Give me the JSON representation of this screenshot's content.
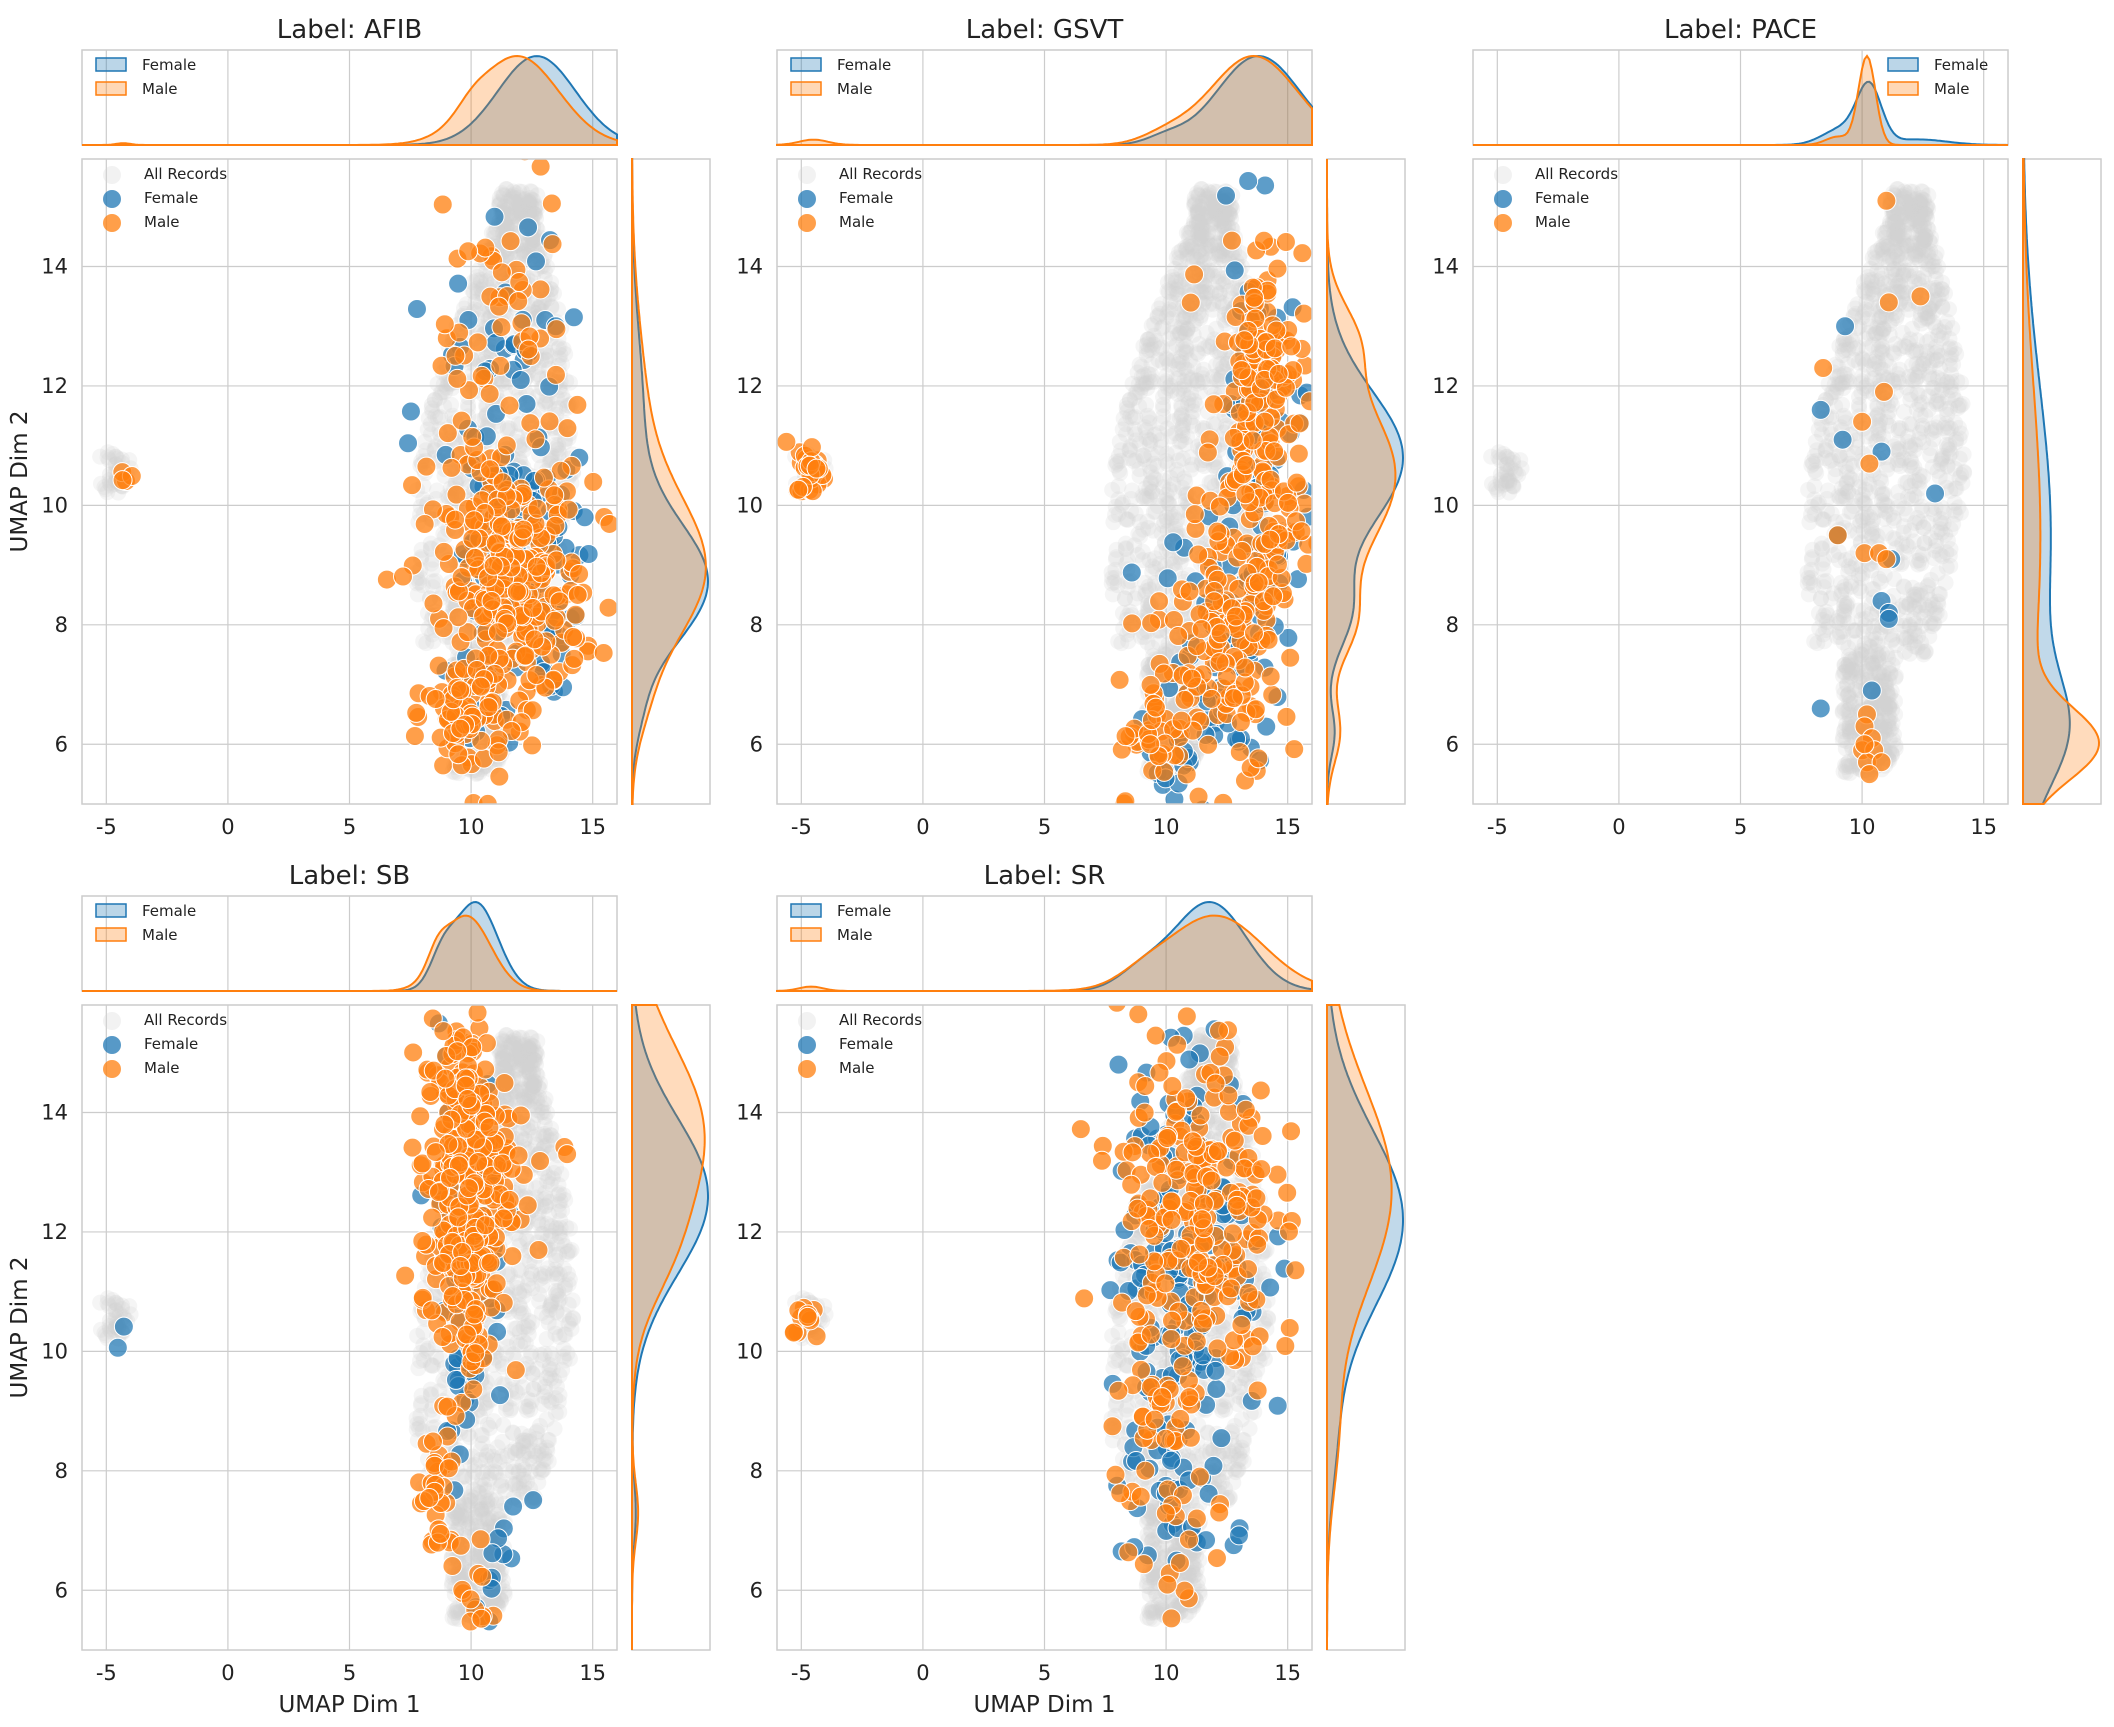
{
  "figure": {
    "x_axis_label": "UMAP Dim 1",
    "y_axis_label": "UMAP Dim 2",
    "x_ticks": [
      -5,
      0,
      5,
      10,
      15
    ],
    "y_ticks": [
      6,
      8,
      10,
      12,
      14
    ],
    "xlim": [
      -6,
      16
    ],
    "ylim": [
      5,
      15.8
    ],
    "colors": {
      "female": "#1f77b4",
      "male": "#ff7f0e",
      "background": "#d3d3d3",
      "grid": "#cccccc"
    },
    "scatter_legend": [
      "All Records",
      "Female",
      "Male"
    ],
    "kde_legend": [
      "Female",
      "Male"
    ]
  },
  "chart_data": [
    {
      "type": "scatter",
      "title": "Label: AFIB",
      "xlabel": "",
      "ylabel": "UMAP Dim 2",
      "kde_legend_position": "top-left",
      "female_cluster": [
        [
          12.0,
          8.8,
          1.2,
          1.0,
          90
        ],
        [
          11.0,
          10.8,
          1.6,
          1.8,
          40
        ],
        [
          10.2,
          6.5,
          0.6,
          0.5,
          20
        ],
        [
          12.5,
          12.5,
          1.8,
          1.5,
          20
        ]
      ],
      "male_cluster": [
        [
          11.8,
          8.6,
          1.4,
          1.0,
          260
        ],
        [
          10.8,
          11.0,
          1.8,
          1.8,
          60
        ],
        [
          9.8,
          6.5,
          0.8,
          0.6,
          60
        ],
        [
          11.0,
          13.6,
          1.4,
          0.8,
          20
        ],
        [
          -4.2,
          10.45,
          0.25,
          0.08,
          4
        ]
      ],
      "x_kde": {
        "x_range": [
          -6,
          16
        ],
        "female": [
          [
            12.7,
            1.6,
            1.0
          ]
        ],
        "male": [
          [
            11.9,
            1.7,
            1.0
          ],
          [
            10.0,
            0.6,
            0.1
          ],
          [
            -4.3,
            0.3,
            0.02
          ]
        ]
      },
      "y_kde": {
        "y_range": [
          5,
          15.8
        ],
        "female": [
          [
            8.7,
            1.0,
            1.0
          ],
          [
            11.5,
            1.4,
            0.15
          ],
          [
            6.5,
            0.5,
            0.07
          ]
        ],
        "male": [
          [
            8.9,
            1.2,
            0.95
          ],
          [
            11.5,
            1.5,
            0.18
          ],
          [
            6.6,
            0.6,
            0.09
          ]
        ]
      }
    },
    {
      "type": "scatter",
      "title": "Label: GSVT",
      "xlabel": "",
      "ylabel": "",
      "kde_legend_position": "top-left",
      "female_cluster": [
        [
          13.8,
          10.2,
          0.9,
          2.0,
          80
        ],
        [
          12.2,
          7.6,
          1.2,
          1.0,
          40
        ],
        [
          10.2,
          6.0,
          0.7,
          0.6,
          20
        ],
        [
          13.8,
          12.4,
          0.7,
          0.8,
          20
        ]
      ],
      "male_cluster": [
        [
          13.6,
          10.2,
          1.0,
          2.0,
          200
        ],
        [
          12.0,
          7.5,
          1.3,
          1.0,
          80
        ],
        [
          9.8,
          6.1,
          0.9,
          0.5,
          40
        ],
        [
          -4.6,
          10.6,
          0.3,
          0.22,
          30
        ],
        [
          14.0,
          12.4,
          0.7,
          0.8,
          40
        ]
      ],
      "x_kde": {
        "x_range": [
          -6,
          16
        ],
        "female": [
          [
            13.8,
            1.7,
            1.0
          ],
          [
            10.0,
            0.8,
            0.08
          ]
        ],
        "male": [
          [
            13.6,
            1.8,
            1.0
          ],
          [
            10.0,
            1.0,
            0.1
          ],
          [
            -4.5,
            0.6,
            0.06
          ]
        ]
      },
      "y_kde": {
        "y_range": [
          5,
          15.8
        ],
        "female": [
          [
            10.8,
            1.1,
            1.0
          ],
          [
            8.2,
            0.6,
            0.28
          ],
          [
            6.2,
            0.4,
            0.1
          ]
        ],
        "male": [
          [
            10.5,
            1.2,
            0.9
          ],
          [
            8.0,
            0.6,
            0.3
          ],
          [
            6.2,
            0.5,
            0.17
          ],
          [
            12.8,
            0.6,
            0.3
          ]
        ]
      }
    },
    {
      "type": "scatter",
      "title": "Label: PACE",
      "xlabel": "",
      "ylabel": "",
      "kde_legend_position": "top-right",
      "female_points": [
        [
          9.3,
          13.0
        ],
        [
          8.3,
          11.6
        ],
        [
          9.2,
          11.1
        ],
        [
          10.8,
          10.9
        ],
        [
          13.0,
          10.2
        ],
        [
          9.0,
          9.5
        ],
        [
          11.2,
          9.1
        ],
        [
          10.8,
          8.4
        ],
        [
          11.1,
          8.2
        ],
        [
          11.1,
          8.1
        ],
        [
          8.3,
          6.6
        ],
        [
          10.4,
          6.9
        ]
      ],
      "male_points": [
        [
          11.0,
          15.1
        ],
        [
          12.4,
          13.5
        ],
        [
          11.1,
          13.4
        ],
        [
          8.4,
          12.3
        ],
        [
          10.9,
          11.9
        ],
        [
          10.0,
          11.4
        ],
        [
          10.3,
          10.7
        ],
        [
          9.0,
          9.5
        ],
        [
          10.1,
          9.2
        ],
        [
          10.7,
          9.2
        ],
        [
          11.0,
          9.1
        ],
        [
          10.2,
          6.5
        ],
        [
          10.1,
          6.3
        ],
        [
          10.4,
          6.1
        ],
        [
          10.0,
          5.9
        ],
        [
          10.5,
          5.9
        ],
        [
          10.2,
          5.7
        ],
        [
          10.8,
          5.7
        ],
        [
          10.3,
          5.5
        ],
        [
          10.1,
          6.0
        ]
      ],
      "x_kde": {
        "x_range": [
          -6,
          16
        ],
        "female": [
          [
            10.3,
            0.5,
            1.0
          ],
          [
            9.2,
            0.8,
            0.3
          ],
          [
            12.3,
            1.2,
            0.1
          ]
        ],
        "male": [
          [
            10.2,
            0.35,
            1.6
          ],
          [
            9.0,
            0.5,
            0.15
          ]
        ]
      },
      "y_kde": {
        "y_range": [
          5,
          15.8
        ],
        "female": [
          [
            6.2,
            0.9,
            0.5
          ],
          [
            9.5,
            2.5,
            0.4
          ]
        ],
        "male": [
          [
            6.0,
            0.6,
            1.0
          ],
          [
            9.5,
            2.5,
            0.25
          ]
        ]
      }
    },
    {
      "type": "scatter",
      "title": "Label: SB",
      "xlabel": "UMAP Dim 1",
      "ylabel": "UMAP Dim 2",
      "kde_legend_position": "top-left",
      "female_cluster": [
        [
          9.8,
          12.0,
          0.8,
          1.6,
          60
        ],
        [
          9.6,
          9.5,
          0.7,
          0.8,
          15
        ],
        [
          11.5,
          7.5,
          0.5,
          0.6,
          6
        ],
        [
          -4.3,
          10.3,
          0.15,
          0.1,
          2
        ],
        [
          10.5,
          6.0,
          0.3,
          0.4,
          6
        ]
      ],
      "male_cluster": [
        [
          9.8,
          13.0,
          0.9,
          1.3,
          280
        ],
        [
          9.6,
          11.0,
          0.7,
          0.9,
          60
        ],
        [
          8.6,
          7.4,
          0.4,
          0.6,
          30
        ],
        [
          10.2,
          5.9,
          0.3,
          0.4,
          12
        ],
        [
          13.0,
          13.4,
          0.8,
          0.3,
          4
        ]
      ],
      "x_kde": {
        "x_range": [
          -6,
          16
        ],
        "female": [
          [
            10.2,
            0.9,
            1.0
          ],
          [
            8.8,
            0.5,
            0.3
          ]
        ],
        "male": [
          [
            9.8,
            1.0,
            0.85
          ],
          [
            8.6,
            0.4,
            0.2
          ]
        ]
      },
      "y_kde": {
        "y_range": [
          5,
          15.8
        ],
        "female": [
          [
            12.6,
            1.3,
            1.0
          ],
          [
            7.3,
            0.5,
            0.05
          ]
        ],
        "male": [
          [
            13.6,
            1.5,
            0.95
          ],
          [
            11.5,
            0.8,
            0.2
          ],
          [
            7.3,
            0.5,
            0.08
          ]
        ]
      }
    },
    {
      "type": "scatter",
      "title": "Label: SR",
      "xlabel": "UMAP Dim 1",
      "ylabel": "",
      "kde_legend_position": "top-left",
      "female_cluster": [
        [
          11.0,
          11.8,
          1.5,
          1.6,
          150
        ],
        [
          9.6,
          8.2,
          0.9,
          0.9,
          30
        ],
        [
          11.5,
          7.5,
          0.9,
          0.8,
          15
        ]
      ],
      "male_cluster": [
        [
          11.2,
          12.3,
          1.6,
          1.6,
          240
        ],
        [
          9.8,
          9.0,
          1.0,
          1.0,
          30
        ],
        [
          -4.7,
          10.5,
          0.3,
          0.2,
          12
        ],
        [
          10.5,
          7.0,
          1.0,
          0.9,
          20
        ]
      ],
      "x_kde": {
        "x_range": [
          -6,
          16
        ],
        "female": [
          [
            11.8,
            1.5,
            1.0
          ],
          [
            9.0,
            1.0,
            0.2
          ]
        ],
        "male": [
          [
            12.0,
            2.0,
            0.85
          ],
          [
            -4.6,
            0.5,
            0.05
          ],
          [
            9.0,
            1.0,
            0.1
          ]
        ]
      },
      "y_kde": {
        "y_range": [
          5,
          15.8
        ],
        "female": [
          [
            12.2,
            1.5,
            1.0
          ],
          [
            8.5,
            1.0,
            0.1
          ]
        ],
        "male": [
          [
            12.7,
            1.7,
            0.85
          ],
          [
            8.5,
            1.0,
            0.12
          ]
        ]
      }
    }
  ]
}
